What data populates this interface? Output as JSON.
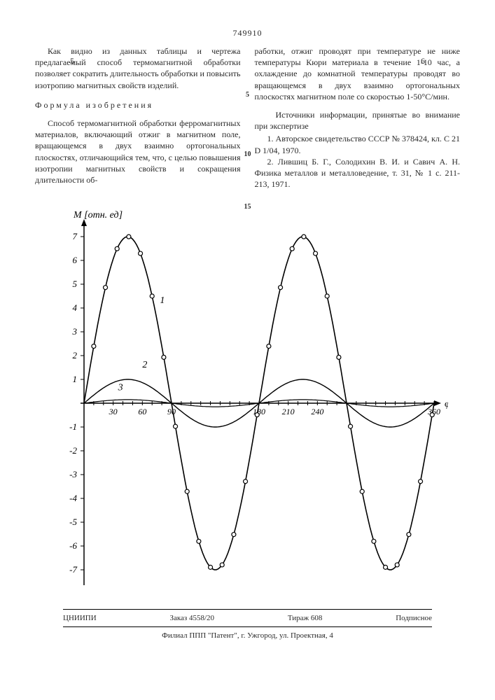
{
  "header": {
    "doc_number": "749910",
    "page_left": "5",
    "page_right": "6"
  },
  "col_left": {
    "para1": "Как видно из данных таблицы и чертежа предлагаемый способ термомагнитной обработки позволяет сократить длительность обработки и повысить изотропию магнитных свойств изделий.",
    "formula_heading": "Формула изобретения",
    "para2": "Способ термомагнитной обработки ферромагнитных материалов, включающий отжиг в магнитном поле, вращающемся в двух взаимно ортогональных плоскостях, отличающийся тем, что, с целью повышения изотропии магнитных свойств и сокращения длительности об-"
  },
  "col_right": {
    "para1": "работки, отжиг проводят при температуре не ниже температуры Кюри материала в течение 1-10 час, а охлаждение до комнатной температуры проводят во вращающемся в двух взаимно ортогональных плоскостях магнитном поле со скоростью 1-50°С/мин.",
    "sources_heading": "Источники информации, принятые во внимание при экспертизе",
    "src1": "1. Авторское свидетельство СССР № 378424, кл. С 21 D 1/04, 1970.",
    "src2": "2. Лившиц Б. Г., Солодихин В. И. и Савич А. Н. Физика металлов и металловедение, т. 31, № 1 с. 211-213, 1971."
  },
  "line_markers": {
    "m5": "5",
    "m10": "10",
    "m15": "15"
  },
  "chart": {
    "type": "line",
    "y_label": "М [отн. ед]",
    "x_label": "φ°",
    "xlim": [
      0,
      360
    ],
    "ylim": [
      -7.5,
      7.5
    ],
    "x_ticks": [
      30,
      60,
      90,
      180,
      210,
      240,
      360
    ],
    "y_ticks": [
      -7,
      -6,
      -5,
      -4,
      -3,
      -2,
      -1,
      1,
      2,
      3,
      4,
      5,
      6,
      7
    ],
    "curve_labels": {
      "c1": "1",
      "c2": "2",
      "c3": "3"
    },
    "background_color": "#ffffff",
    "axis_color": "#000000",
    "line_color": "#000000",
    "marker_style": "open-circle",
    "series": {
      "curve1": {
        "amplitude": 7.0,
        "period": 180,
        "markers": true
      },
      "curve2": {
        "amplitude": 1.0,
        "period": 180,
        "markers": false
      },
      "curve3": {
        "amplitude": 0.15,
        "period": 180,
        "markers": false
      }
    }
  },
  "footer": {
    "org": "ЦНИИПИ",
    "order": "Заказ 4558/20",
    "tirage": "Тираж 608",
    "sub": "Подписное",
    "branch": "Филиал ППП \"Патент\", г. Ужгород, ул. Проектная, 4"
  }
}
